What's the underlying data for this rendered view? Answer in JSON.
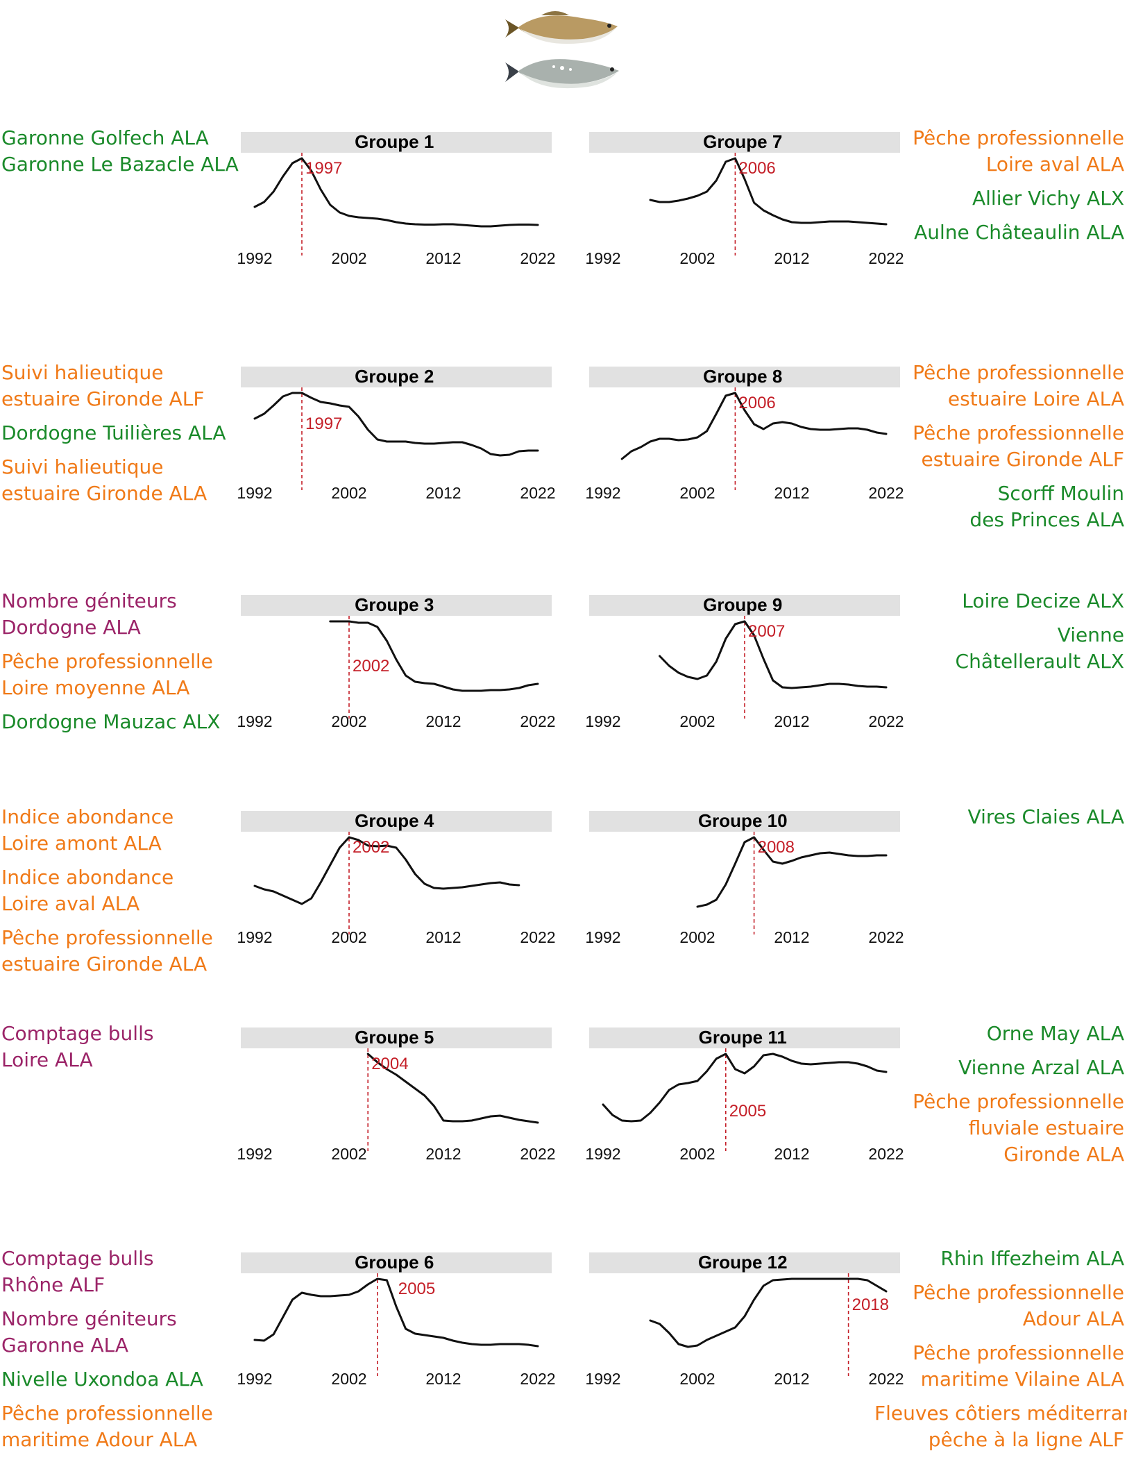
{
  "colors": {
    "green": "#1a8a2a",
    "orange": "#f07a18",
    "purple": "#9b2468",
    "peak": "#c41f28",
    "banner": "#e1e1e1",
    "line": "#111111"
  },
  "fish_icons": [
    "shad-fish-icon",
    "twaite-shad-fish-icon"
  ],
  "chart_data": [
    {
      "type": "line",
      "title": "Groupe 1",
      "xlim": [
        1992,
        2022
      ],
      "x_ticks": [
        1992,
        2002,
        2012,
        2022
      ],
      "peak_year": 1997,
      "peak_label": "1997",
      "x": [
        1992,
        1993,
        1994,
        1995,
        1996,
        1997,
        1998,
        1999,
        2000,
        2001,
        2002,
        2003,
        2004,
        2005,
        2006,
        2007,
        2008,
        2009,
        2010,
        2011,
        2012,
        2013,
        2014,
        2015,
        2016,
        2017,
        2018,
        2019,
        2020,
        2021,
        2022
      ],
      "y": [
        0.3,
        0.37,
        0.52,
        0.74,
        0.93,
        1.0,
        0.82,
        0.55,
        0.33,
        0.22,
        0.17,
        0.15,
        0.14,
        0.13,
        0.11,
        0.08,
        0.06,
        0.05,
        0.045,
        0.045,
        0.05,
        0.05,
        0.04,
        0.03,
        0.02,
        0.02,
        0.03,
        0.04,
        0.045,
        0.045,
        0.04
      ],
      "left_labels": [
        [
          {
            "text": "Garonne Golfech ALA",
            "color": "green"
          },
          {
            "text": "Garonne Le Bazacle ALA",
            "color": "green"
          }
        ]
      ],
      "right_labels": []
    },
    {
      "type": "line",
      "title": "Groupe 2",
      "xlim": [
        1992,
        2022
      ],
      "x_ticks": [
        1992,
        2002,
        2012,
        2022
      ],
      "peak_year": 1997,
      "peak_label": "1997",
      "x": [
        1992,
        1993,
        1994,
        1995,
        1996,
        1997,
        1998,
        1999,
        2000,
        2001,
        2002,
        2003,
        2004,
        2005,
        2006,
        2007,
        2008,
        2009,
        2010,
        2011,
        2012,
        2013,
        2014,
        2015,
        2016,
        2017,
        2018,
        2019,
        2020,
        2021,
        2022
      ],
      "y": [
        0.63,
        0.7,
        0.82,
        0.95,
        1.0,
        1.0,
        0.93,
        0.87,
        0.85,
        0.82,
        0.8,
        0.66,
        0.47,
        0.33,
        0.3,
        0.3,
        0.3,
        0.28,
        0.27,
        0.27,
        0.28,
        0.29,
        0.29,
        0.25,
        0.2,
        0.12,
        0.1,
        0.11,
        0.16,
        0.17,
        0.17
      ],
      "left_labels": [
        [
          {
            "text": "Suivi halieutique",
            "color": "orange"
          },
          {
            "text": "estuaire Gironde ALF",
            "color": "orange"
          }
        ],
        [
          {
            "text": "Dordogne Tuilières ALA",
            "color": "green"
          }
        ],
        [
          {
            "text": "Suivi halieutique",
            "color": "orange"
          },
          {
            "text": "estuaire Gironde ALA",
            "color": "orange"
          }
        ]
      ],
      "right_labels": []
    },
    {
      "type": "line",
      "title": "Groupe 3",
      "xlim": [
        1992,
        2022
      ],
      "x_ticks": [
        1992,
        2002,
        2012,
        2022
      ],
      "peak_year": 2002,
      "peak_label": "2002",
      "x": [
        2000,
        2001,
        2002,
        2003,
        2004,
        2005,
        2006,
        2007,
        2008,
        2009,
        2010,
        2011,
        2012,
        2013,
        2014,
        2015,
        2016,
        2017,
        2018,
        2019,
        2020,
        2021,
        2022
      ],
      "y": [
        1.0,
        1.0,
        1.0,
        0.98,
        0.98,
        0.92,
        0.72,
        0.45,
        0.22,
        0.13,
        0.11,
        0.1,
        0.06,
        0.02,
        0.0,
        0.0,
        0.0,
        0.01,
        0.01,
        0.02,
        0.04,
        0.08,
        0.1
      ],
      "left_labels": [
        [
          {
            "text": "Nombre géniteurs",
            "color": "purple"
          },
          {
            "text": "Dordogne ALA",
            "color": "purple"
          }
        ],
        [
          {
            "text": "Pêche professionnelle",
            "color": "orange"
          },
          {
            "text": "Loire moyenne ALA",
            "color": "orange"
          }
        ],
        [
          {
            "text": "Dordogne Mauzac ALX",
            "color": "green"
          }
        ]
      ],
      "right_labels": []
    },
    {
      "type": "line",
      "title": "Groupe 4",
      "xlim": [
        1992,
        2022
      ],
      "x_ticks": [
        1992,
        2002,
        2012,
        2022
      ],
      "peak_year": 2002,
      "peak_label": "2002",
      "x": [
        1992,
        1993,
        1994,
        1995,
        1996,
        1997,
        1998,
        1999,
        2000,
        2001,
        2002,
        2003,
        2004,
        2005,
        2006,
        2007,
        2008,
        2009,
        2010,
        2011,
        2012,
        2013,
        2014,
        2015,
        2016,
        2017,
        2018,
        2019,
        2020
      ],
      "y": [
        0.3,
        0.25,
        0.22,
        0.16,
        0.1,
        0.04,
        0.12,
        0.35,
        0.6,
        0.85,
        1.0,
        0.96,
        0.88,
        0.87,
        0.88,
        0.85,
        0.68,
        0.47,
        0.33,
        0.27,
        0.26,
        0.27,
        0.28,
        0.3,
        0.32,
        0.34,
        0.35,
        0.32,
        0.31
      ],
      "left_labels": [
        [
          {
            "text": "Indice abondance",
            "color": "orange"
          },
          {
            "text": "Loire amont ALA",
            "color": "orange"
          }
        ],
        [
          {
            "text": "Indice abondance",
            "color": "orange"
          },
          {
            "text": "Loire aval ALA",
            "color": "orange"
          }
        ],
        [
          {
            "text": "Pêche professionnelle",
            "color": "orange"
          },
          {
            "text": "estuaire Gironde ALA",
            "color": "orange"
          }
        ]
      ],
      "right_labels": []
    },
    {
      "type": "line",
      "title": "Groupe 5",
      "xlim": [
        1992,
        2022
      ],
      "x_ticks": [
        1992,
        2002,
        2012,
        2022
      ],
      "peak_year": 2004,
      "peak_label": "2004",
      "x": [
        2004,
        2005,
        2006,
        2007,
        2008,
        2009,
        2010,
        2011,
        2012,
        2013,
        2014,
        2015,
        2016,
        2017,
        2018,
        2019,
        2020,
        2021,
        2022
      ],
      "y": [
        1.0,
        0.88,
        0.78,
        0.7,
        0.6,
        0.5,
        0.4,
        0.25,
        0.04,
        0.03,
        0.03,
        0.04,
        0.07,
        0.1,
        0.11,
        0.08,
        0.05,
        0.03,
        0.01
      ],
      "left_labels": [
        [
          {
            "text": "Comptage bulls",
            "color": "purple"
          },
          {
            "text": "Loire ALA",
            "color": "purple"
          }
        ]
      ],
      "right_labels": []
    },
    {
      "type": "line",
      "title": "Groupe 6",
      "xlim": [
        1992,
        2022
      ],
      "x_ticks": [
        1992,
        2002,
        2012,
        2022
      ],
      "peak_year": 2005,
      "peak_label": "2005",
      "x": [
        1992,
        1993,
        1994,
        1995,
        1996,
        1997,
        1998,
        1999,
        2000,
        2001,
        2002,
        2003,
        2004,
        2005,
        2006,
        2007,
        2008,
        2009,
        2010,
        2011,
        2012,
        2013,
        2014,
        2015,
        2016,
        2017,
        2018,
        2019,
        2020,
        2021,
        2022
      ],
      "y": [
        0.12,
        0.11,
        0.2,
        0.45,
        0.7,
        0.8,
        0.77,
        0.75,
        0.75,
        0.76,
        0.77,
        0.82,
        0.92,
        1.0,
        0.98,
        0.6,
        0.28,
        0.21,
        0.19,
        0.17,
        0.15,
        0.11,
        0.08,
        0.06,
        0.05,
        0.05,
        0.06,
        0.06,
        0.06,
        0.05,
        0.03
      ],
      "left_labels": [
        [
          {
            "text": "Comptage bulls",
            "color": "purple"
          },
          {
            "text": "Rhône ALF",
            "color": "purple"
          }
        ],
        [
          {
            "text": "Nombre géniteurs",
            "color": "purple"
          },
          {
            "text": "Garonne ALA",
            "color": "purple"
          }
        ],
        [
          {
            "text": "Nivelle Uxondoa ALA",
            "color": "green"
          }
        ],
        [
          {
            "text": "Pêche professionnelle",
            "color": "orange"
          },
          {
            "text": "maritime Adour ALA",
            "color": "orange"
          }
        ]
      ],
      "right_labels": []
    },
    {
      "type": "line",
      "title": "Groupe 7",
      "xlim": [
        1992,
        2022
      ],
      "x_ticks": [
        1992,
        2002,
        2012,
        2022
      ],
      "peak_year": 2006,
      "peak_label": "2006",
      "x": [
        1997,
        1998,
        1999,
        2000,
        2001,
        2002,
        2003,
        2004,
        2005,
        2006,
        2007,
        2008,
        2009,
        2010,
        2011,
        2012,
        2013,
        2014,
        2015,
        2016,
        2017,
        2018,
        2019,
        2020,
        2021,
        2022
      ],
      "y": [
        0.4,
        0.37,
        0.37,
        0.39,
        0.42,
        0.46,
        0.52,
        0.68,
        0.95,
        1.0,
        0.7,
        0.36,
        0.25,
        0.18,
        0.12,
        0.08,
        0.07,
        0.07,
        0.08,
        0.09,
        0.09,
        0.09,
        0.08,
        0.07,
        0.06,
        0.05
      ],
      "left_labels": [],
      "right_labels": [
        [
          {
            "text": "Pêche professionnelle",
            "color": "orange"
          },
          {
            "text": "Loire aval ALA",
            "color": "orange"
          }
        ],
        [
          {
            "text": "Allier Vichy ALX",
            "color": "green"
          }
        ],
        [
          {
            "text": "Aulne Châteaulin ALA",
            "color": "green"
          }
        ]
      ]
    },
    {
      "type": "line",
      "title": "Groupe 8",
      "xlim": [
        1992,
        2022
      ],
      "x_ticks": [
        1992,
        2002,
        2012,
        2022
      ],
      "peak_year": 2006,
      "peak_label": "2006",
      "x": [
        1994,
        1995,
        1996,
        1997,
        1998,
        1999,
        2000,
        2001,
        2002,
        2003,
        2004,
        2005,
        2006,
        2007,
        2008,
        2009,
        2010,
        2011,
        2012,
        2013,
        2014,
        2015,
        2016,
        2017,
        2018,
        2019,
        2020,
        2021,
        2022
      ],
      "y": [
        0.05,
        0.16,
        0.22,
        0.3,
        0.34,
        0.34,
        0.32,
        0.33,
        0.36,
        0.45,
        0.7,
        0.96,
        1.0,
        0.75,
        0.55,
        0.48,
        0.56,
        0.58,
        0.56,
        0.51,
        0.48,
        0.47,
        0.47,
        0.48,
        0.49,
        0.49,
        0.47,
        0.43,
        0.41
      ],
      "left_labels": [],
      "right_labels": [
        [
          {
            "text": "Pêche professionnelle",
            "color": "orange"
          },
          {
            "text": "estuaire Loire ALA",
            "color": "orange"
          }
        ],
        [
          {
            "text": "Pêche professionnelle",
            "color": "orange"
          },
          {
            "text": "estuaire Gironde ALF",
            "color": "orange"
          }
        ],
        [
          {
            "text": "Scorff Moulin",
            "color": "green"
          },
          {
            "text": "des Princes ALA",
            "color": "green"
          }
        ]
      ]
    },
    {
      "type": "line",
      "title": "Groupe 9",
      "xlim": [
        1992,
        2022
      ],
      "x_ticks": [
        1992,
        2002,
        2012,
        2022
      ],
      "peak_year": 2007,
      "peak_label": "2007",
      "x": [
        1998,
        1999,
        2000,
        2001,
        2002,
        2003,
        2004,
        2005,
        2006,
        2007,
        2008,
        2009,
        2010,
        2011,
        2012,
        2013,
        2014,
        2015,
        2016,
        2017,
        2018,
        2019,
        2020,
        2021,
        2022
      ],
      "y": [
        0.5,
        0.36,
        0.26,
        0.2,
        0.17,
        0.22,
        0.42,
        0.75,
        0.96,
        1.0,
        0.8,
        0.46,
        0.15,
        0.05,
        0.04,
        0.05,
        0.06,
        0.08,
        0.1,
        0.1,
        0.09,
        0.07,
        0.06,
        0.06,
        0.05
      ],
      "left_labels": [],
      "right_labels": [
        [
          {
            "text": "Loire Decize ALX",
            "color": "green"
          }
        ],
        [
          {
            "text": "Vienne",
            "color": "green"
          },
          {
            "text": "Châtellerault ALX",
            "color": "green"
          }
        ]
      ]
    },
    {
      "type": "line",
      "title": "Groupe 10",
      "xlim": [
        1992,
        2022
      ],
      "x_ticks": [
        1992,
        2002,
        2012,
        2022
      ],
      "peak_year": 2008,
      "peak_label": "2008",
      "x": [
        2002,
        2003,
        2004,
        2005,
        2006,
        2007,
        2008,
        2009,
        2010,
        2011,
        2012,
        2013,
        2014,
        2015,
        2016,
        2017,
        2018,
        2019,
        2020,
        2021,
        2022
      ],
      "y": [
        0.0,
        0.03,
        0.1,
        0.32,
        0.62,
        0.93,
        1.0,
        0.82,
        0.65,
        0.62,
        0.66,
        0.71,
        0.74,
        0.77,
        0.78,
        0.76,
        0.74,
        0.73,
        0.73,
        0.74,
        0.74
      ],
      "left_labels": [],
      "right_labels": [
        [
          {
            "text": "Vires Claies ALA",
            "color": "green"
          }
        ]
      ]
    },
    {
      "type": "line",
      "title": "Groupe 11",
      "xlim": [
        1992,
        2022
      ],
      "x_ticks": [
        1992,
        2002,
        2012,
        2022
      ],
      "peak_year": 2005,
      "peak_label": "2005",
      "x": [
        1992,
        1993,
        1994,
        1995,
        1996,
        1997,
        1998,
        1999,
        2000,
        2001,
        2002,
        2003,
        2004,
        2005,
        2006,
        2007,
        2008,
        2009,
        2010,
        2011,
        2012,
        2013,
        2014,
        2015,
        2016,
        2017,
        2018,
        2019,
        2020,
        2021,
        2022
      ],
      "y": [
        0.27,
        0.12,
        0.04,
        0.03,
        0.04,
        0.15,
        0.3,
        0.48,
        0.56,
        0.58,
        0.61,
        0.75,
        0.93,
        1.0,
        0.78,
        0.72,
        0.82,
        0.98,
        1.0,
        0.96,
        0.9,
        0.86,
        0.85,
        0.86,
        0.87,
        0.88,
        0.88,
        0.86,
        0.82,
        0.76,
        0.74
      ],
      "left_labels": [],
      "right_labels": [
        [
          {
            "text": "Orne May ALA",
            "color": "green"
          }
        ],
        [
          {
            "text": "Vienne Arzal ALA",
            "color": "green"
          }
        ],
        [
          {
            "text": "Pêche professionnelle",
            "color": "orange"
          },
          {
            "text": "fluviale estuaire",
            "color": "orange"
          },
          {
            "text": "Gironde ALA",
            "color": "orange"
          }
        ]
      ]
    },
    {
      "type": "line",
      "title": "Groupe 12",
      "xlim": [
        1992,
        2022
      ],
      "x_ticks": [
        1992,
        2002,
        2012,
        2022
      ],
      "peak_year": 2018,
      "peak_label": "2018",
      "x": [
        1997,
        1998,
        1999,
        2000,
        2001,
        2002,
        2003,
        2004,
        2005,
        2006,
        2007,
        2008,
        2009,
        2010,
        2011,
        2012,
        2013,
        2014,
        2015,
        2016,
        2017,
        2018,
        2019,
        2020,
        2021,
        2022
      ],
      "y": [
        0.4,
        0.35,
        0.22,
        0.06,
        0.02,
        0.04,
        0.12,
        0.18,
        0.24,
        0.3,
        0.46,
        0.7,
        0.9,
        0.98,
        0.99,
        1.0,
        1.0,
        1.0,
        1.0,
        1.0,
        1.0,
        1.0,
        1.0,
        0.98,
        0.9,
        0.82
      ],
      "left_labels": [],
      "right_labels": [
        [
          {
            "text": "Rhin Iffezheim ALA",
            "color": "green"
          }
        ],
        [
          {
            "text": "Pêche professionnelle",
            "color": "orange"
          },
          {
            "text": "Adour ALA",
            "color": "orange"
          }
        ],
        [
          {
            "text": "Pêche professionnelle",
            "color": "orange"
          },
          {
            "text": "maritime Vilaine ALA",
            "color": "orange"
          }
        ],
        [
          {
            "text": "Fleuves côtiers méditerranéens",
            "color": "orange"
          },
          {
            "text": "pêche à la ligne ALF",
            "color": "orange"
          }
        ]
      ]
    }
  ]
}
